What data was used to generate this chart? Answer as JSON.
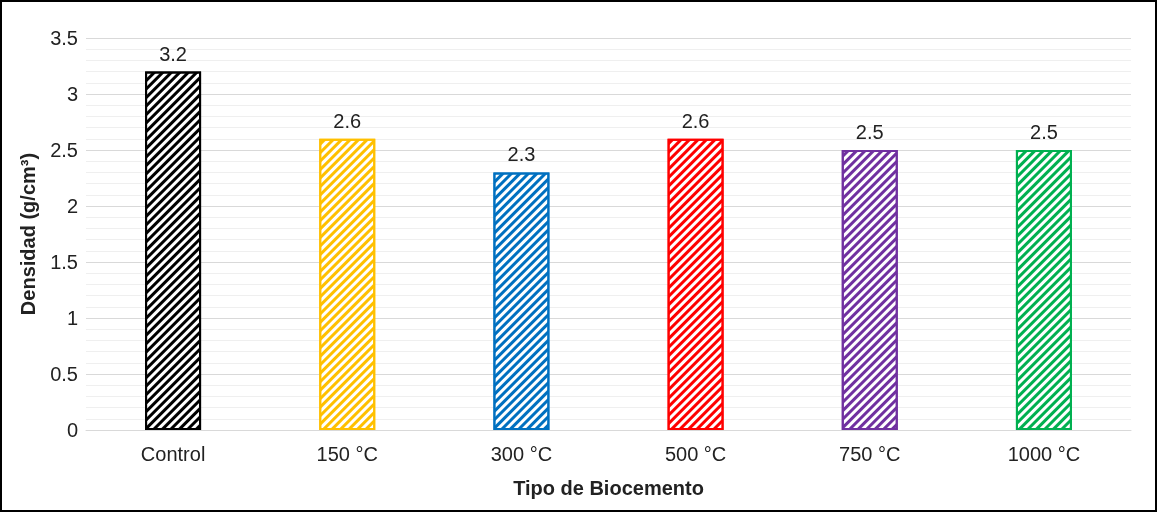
{
  "chart_data": {
    "type": "bar",
    "xlabel": "Tipo de Biocemento",
    "ylabel": "Densidad (g/cm³)",
    "categories": [
      "Control",
      "150 °C",
      "300 °C",
      "500 °C",
      "750 °C",
      "1000 °C"
    ],
    "values": [
      3.2,
      2.6,
      2.3,
      2.6,
      2.5,
      2.5
    ],
    "colors": [
      "#000000",
      "#ffc000",
      "#0070c0",
      "#ff0000",
      "#7030a0",
      "#00b050"
    ],
    "ylim": [
      0,
      3.5
    ],
    "yticks": [
      0,
      0.5,
      1,
      1.5,
      2,
      2.5,
      3,
      3.5
    ],
    "grid": true,
    "data_labels": true
  }
}
